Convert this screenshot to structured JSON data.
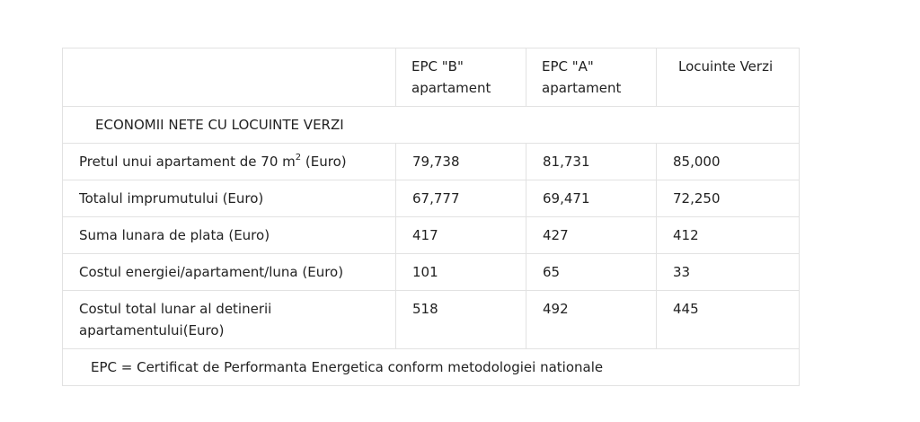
{
  "table": {
    "headers": [
      "",
      "EPC \"B\" apartament",
      "EPC \"A\" apartament",
      "Locuinte Verzi"
    ],
    "section_title": "ECONOMII NETE CU LOCUINTE VERZI",
    "rows": [
      {
        "label_before": "Pretul unui apartament de 70 m",
        "label_sup": "2",
        "label_after": " (Euro)",
        "values": [
          "79,738",
          "81,731",
          "85,000"
        ]
      },
      {
        "label": "Totalul imprumutului (Euro)",
        "values": [
          "67,777",
          "69,471",
          "72,250"
        ]
      },
      {
        "label": "Suma lunara de plata (Euro)",
        "values": [
          "417",
          "427",
          "412"
        ]
      },
      {
        "label": "Costul energiei/apartament/luna (Euro)",
        "values": [
          "101",
          "65",
          "33"
        ]
      },
      {
        "label": "Costul total lunar al detinerii apartamentului(Euro)",
        "values": [
          "518",
          "492",
          "445"
        ]
      }
    ],
    "footnote": "EPC = Certificat de Performanta Energetica conform metodologiei nationale"
  }
}
